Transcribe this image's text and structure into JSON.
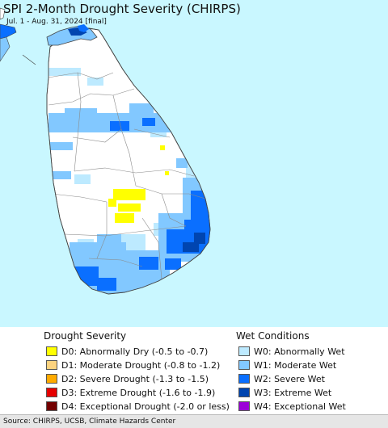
{
  "header": {
    "title": "SPI 2-Month Drought Severity (CHIRPS)",
    "subtitle": "Jul. 1 - Aug. 31, 2024 [final]"
  },
  "legend": {
    "drought": {
      "title": "Drought Severity",
      "items": [
        {
          "label": "D0: Abnormally Dry (-0.5 to -0.7)",
          "color": "#ffff00"
        },
        {
          "label": "D1: Moderate Drought (-0.8 to -1.2)",
          "color": "#fcd37f"
        },
        {
          "label": "D2: Severe Drought (-1.3 to -1.5)",
          "color": "#ffaa00"
        },
        {
          "label": "D3: Extreme Drought (-1.6 to -1.9)",
          "color": "#e60000"
        },
        {
          "label": "D4: Exceptional Drought (-2.0 or less)",
          "color": "#730000"
        }
      ]
    },
    "wet": {
      "title": "Wet Conditions",
      "items": [
        {
          "label": "W0: Abnormally Wet",
          "color": "#bdeaff"
        },
        {
          "label": "W1: Moderate Wet",
          "color": "#82c8ff"
        },
        {
          "label": "W2: Severe Wet",
          "color": "#0a6fff"
        },
        {
          "label": "W3: Extreme Wet",
          "color": "#0045b0"
        },
        {
          "label": "W4: Exceptional Wet",
          "color": "#9b00d8"
        }
      ]
    }
  },
  "footer": {
    "source": "Source: CHIRPS, UCSB, Climate Hazards Center"
  }
}
